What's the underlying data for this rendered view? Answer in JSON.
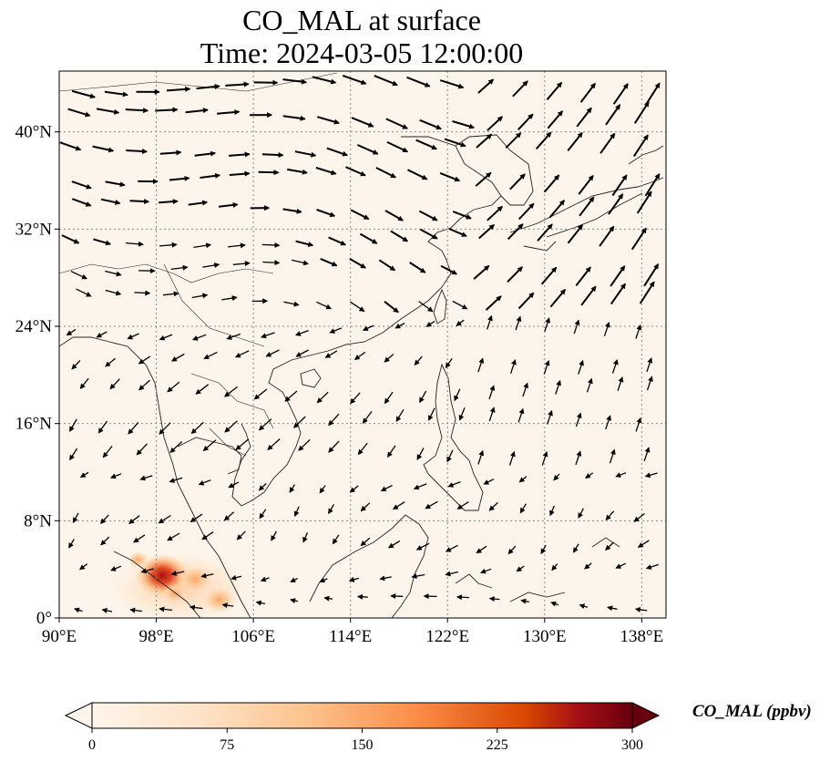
{
  "title": {
    "line1": "CO_MAL at surface",
    "line2": "Time: 2024-03-05 12:00:00"
  },
  "map": {
    "lon_range": [
      90,
      140
    ],
    "lat_range": [
      0,
      45
    ],
    "lon_ticks": [
      {
        "value": 90,
        "label": "90°E"
      },
      {
        "value": 98,
        "label": "98°E"
      },
      {
        "value": 106,
        "label": "106°E"
      },
      {
        "value": 114,
        "label": "114°E"
      },
      {
        "value": 122,
        "label": "122°E"
      },
      {
        "value": 130,
        "label": "130°E"
      },
      {
        "value": 138,
        "label": "138°E"
      }
    ],
    "lat_ticks": [
      {
        "value": 0,
        "label": "0°"
      },
      {
        "value": 8,
        "label": "8°N"
      },
      {
        "value": 16,
        "label": "16°N"
      },
      {
        "value": 24,
        "label": "24°N"
      },
      {
        "value": 32,
        "label": "32°N"
      },
      {
        "value": 40,
        "label": "40°N"
      }
    ],
    "gridlines": true,
    "background_color": "#fdf5eb",
    "hotspots": [
      {
        "lon": 98.5,
        "lat": 3.5,
        "intensity": 1.0
      },
      {
        "lon": 101.2,
        "lat": 3.2,
        "intensity": 0.55
      },
      {
        "lon": 103.2,
        "lat": 1.5,
        "intensity": 0.5
      },
      {
        "lon": 99.5,
        "lat": 2.0,
        "intensity": 0.25
      },
      {
        "lon": 96.5,
        "lat": 4.8,
        "intensity": 0.2
      }
    ]
  },
  "colorbar": {
    "label": "CO_MAL (ppbv)",
    "vmin": 0,
    "vmax": 300,
    "ticks": [
      {
        "value": 0,
        "label": "0"
      },
      {
        "value": 75,
        "label": "75"
      },
      {
        "value": 150,
        "label": "150"
      },
      {
        "value": 225,
        "label": "225"
      },
      {
        "value": 300,
        "label": "300"
      }
    ],
    "colors": [
      "#fff5eb",
      "#fdd2a5",
      "#fd9243",
      "#df4f24",
      "#a50f15",
      "#67000d"
    ],
    "extend": "both"
  }
}
